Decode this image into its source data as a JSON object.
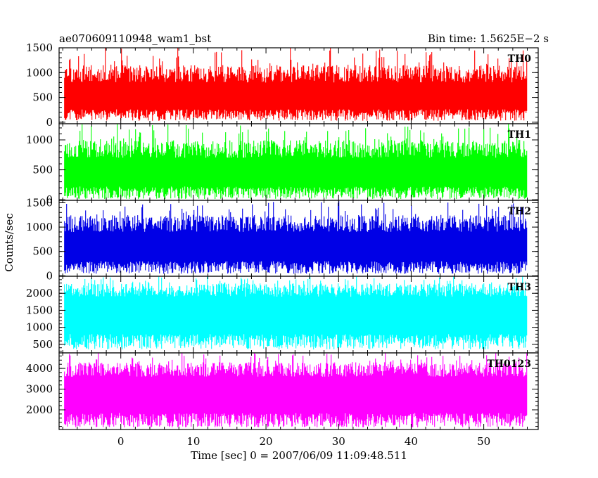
{
  "header": {
    "title": "ae070609110948_wam1_bst",
    "bin_time": "Bin time: 1.5625E−2 s"
  },
  "chart_data": {
    "type": "line",
    "title": "ae070609110948_wam1_bst",
    "xlabel": "Time [sec] 0 = 2007/06/09 11:09:48.511",
    "ylabel": "Counts/sec",
    "xlim": [
      -8.5,
      57.5
    ],
    "x_data_range": [
      -7.75,
      56.0
    ],
    "x_ticks": [
      0,
      10,
      20,
      30,
      40,
      50
    ],
    "x_tick_labels": [
      "0",
      "10",
      "20",
      "30",
      "40",
      "50"
    ],
    "x_minor_step": 2,
    "grid": false,
    "panels": [
      {
        "name": "TH0",
        "color": "#ff0000",
        "ylim": [
          -30,
          1500
        ],
        "y_ticks": [
          0,
          500,
          1000,
          1500
        ],
        "y_tick_labels": [
          "0",
          "500",
          "1000",
          "1500"
        ],
        "y_minor_step": 100,
        "band_low": [
          30,
          260
        ],
        "band_high": [
          800,
          1150
        ],
        "spike_max": 1500,
        "seed": 11
      },
      {
        "name": "TH1",
        "color": "#00ff00",
        "ylim": [
          -10,
          1270
        ],
        "y_ticks": [
          0,
          500,
          1000
        ],
        "y_tick_labels": [
          "0",
          "500",
          "1000"
        ],
        "y_minor_step": 100,
        "band_low": [
          10,
          220
        ],
        "band_high": [
          700,
          1000
        ],
        "spike_max": 1270,
        "seed": 23
      },
      {
        "name": "TH2",
        "color": "#0000e6",
        "ylim": [
          -10,
          1550
        ],
        "y_ticks": [
          0,
          500,
          1000,
          1500
        ],
        "y_tick_labels": [
          "0",
          "500",
          "1000",
          "1500"
        ],
        "y_minor_step": 100,
        "band_low": [
          40,
          300
        ],
        "band_high": [
          900,
          1250
        ],
        "spike_max": 1550,
        "seed": 37
      },
      {
        "name": "TH3",
        "color": "#00ffff",
        "ylim": [
          250,
          2500
        ],
        "y_ticks": [
          500,
          1000,
          1500,
          2000
        ],
        "y_tick_labels": [
          "500",
          "1000",
          "1500",
          "2000"
        ],
        "y_minor_step": 100,
        "band_low": [
          350,
          800
        ],
        "band_high": [
          1900,
          2300
        ],
        "spike_max": 2500,
        "seed": 51
      },
      {
        "name": "TH0123",
        "color": "#ff00ff",
        "ylim": [
          1050,
          4750
        ],
        "y_ticks": [
          2000,
          3000,
          4000
        ],
        "y_tick_labels": [
          "2000",
          "3000",
          "4000"
        ],
        "y_minor_step": 200,
        "band_low": [
          1150,
          1850
        ],
        "band_high": [
          3600,
          4300
        ],
        "spike_max": 4750,
        "seed": 67
      }
    ]
  }
}
